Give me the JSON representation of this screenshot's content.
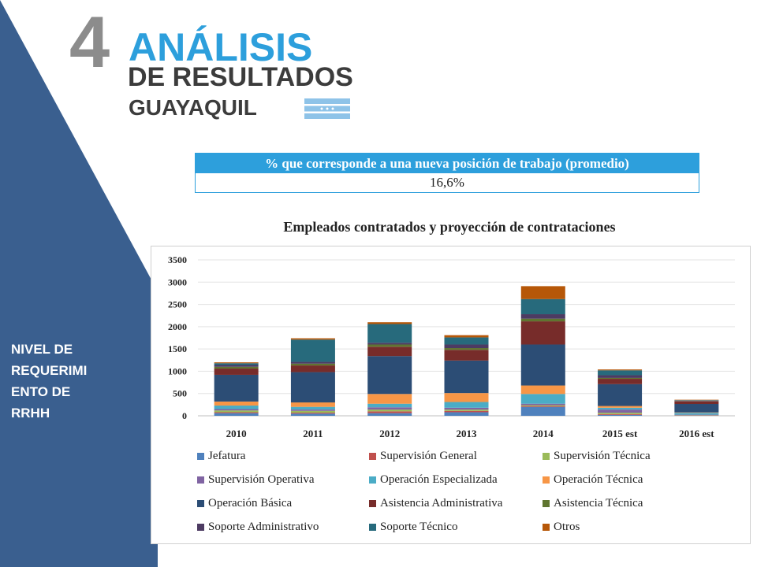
{
  "header": {
    "number": "4",
    "title_line1": "ANÁLISIS",
    "title_line2": "DE RESULTADOS",
    "title_line3": "GUAYAQUIL"
  },
  "sidebar": {
    "label": "NIVEL DE\nREQUERIMI\nENTO DE\nRRHH",
    "color": "#3a5f8f"
  },
  "kpi": {
    "header": "% que corresponde a una nueva posición de trabajo (promedio)",
    "value": "16,6%"
  },
  "chart_data": {
    "type": "bar",
    "stacked": true,
    "title": "Empleados contratados y proyección de contrataciones",
    "xlabel": "",
    "ylabel": "",
    "ylim": [
      0,
      3500
    ],
    "yticks": [
      0,
      500,
      1000,
      1500,
      2000,
      2500,
      3000,
      3500
    ],
    "grid": true,
    "legend_position": "bottom",
    "categories": [
      "2010",
      "2011",
      "2012",
      "2013",
      "2014",
      "2015 est",
      "2016 est"
    ],
    "series": [
      {
        "name": "Jefatura",
        "color": "#4f81bd",
        "values": [
          60,
          50,
          60,
          80,
          200,
          20,
          5
        ]
      },
      {
        "name": "Supervisión General",
        "color": "#c0504d",
        "values": [
          20,
          20,
          40,
          30,
          20,
          20,
          5
        ]
      },
      {
        "name": "Supervisión Técnica",
        "color": "#9bbb59",
        "values": [
          40,
          40,
          40,
          30,
          20,
          30,
          5
        ]
      },
      {
        "name": "Supervisión Operativa",
        "color": "#8064a2",
        "values": [
          30,
          30,
          50,
          40,
          30,
          70,
          10
        ]
      },
      {
        "name": "Operación Especializada",
        "color": "#4bacc6",
        "values": [
          80,
          60,
          80,
          130,
          220,
          40,
          40
        ]
      },
      {
        "name": "Operación Técnica",
        "color": "#f79646",
        "values": [
          90,
          100,
          220,
          200,
          190,
          40,
          10
        ]
      },
      {
        "name": "Operación Básica",
        "color": "#2c4d75",
        "values": [
          600,
          680,
          850,
          730,
          920,
          490,
          190
        ]
      },
      {
        "name": "Asistencia Administrativa",
        "color": "#772c2a",
        "values": [
          140,
          150,
          210,
          240,
          520,
          120,
          60
        ]
      },
      {
        "name": "Asistencia Técnica",
        "color": "#5f7530",
        "values": [
          40,
          40,
          50,
          40,
          60,
          20,
          5
        ]
      },
      {
        "name": "Soporte Administrativo",
        "color": "#4d3b62",
        "values": [
          40,
          40,
          40,
          80,
          100,
          60,
          10
        ]
      },
      {
        "name": "Soporte Técnico",
        "color": "#276a7c",
        "values": [
          40,
          500,
          420,
          160,
          340,
          110,
          10
        ]
      },
      {
        "name": "Otros",
        "color": "#b65708",
        "values": [
          20,
          30,
          40,
          50,
          290,
          20,
          10
        ]
      }
    ]
  }
}
